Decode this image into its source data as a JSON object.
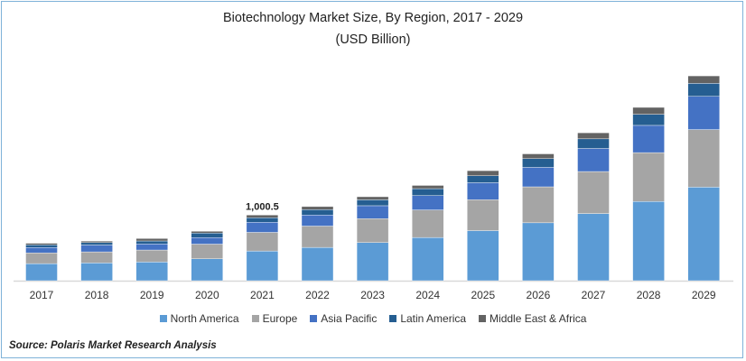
{
  "chart_data": {
    "type": "bar",
    "stacked": true,
    "title": "Biotechnology Market Size, By Region, 2017 - 2029",
    "subtitle": "(USD Billion)",
    "xlabel": "",
    "ylabel": "",
    "ylim": [
      0,
      3300
    ],
    "grid": false,
    "legend_position": "bottom",
    "categories": [
      "2017",
      "2018",
      "2019",
      "2020",
      "2021",
      "2022",
      "2023",
      "2024",
      "2025",
      "2026",
      "2027",
      "2028",
      "2029"
    ],
    "series": [
      {
        "name": "North America",
        "color": "#5b9bd5",
        "values": [
          260,
          270,
          284,
          333,
          452,
          507,
          581,
          658,
          763,
          882,
          1023,
          1206,
          1425
        ]
      },
      {
        "name": "Europe",
        "color": "#a5a5a5",
        "values": [
          164,
          169,
          183,
          224,
          284,
          325,
          364,
          420,
          470,
          548,
          640,
          745,
          877
        ]
      },
      {
        "name": "Asia Pacific",
        "color": "#4472c4",
        "values": [
          82,
          105,
          92,
          100,
          155,
          169,
          197,
          219,
          260,
          296,
          351,
          415,
          507
        ]
      },
      {
        "name": "Latin America",
        "color": "#255e91",
        "values": [
          41,
          36,
          46,
          68,
          68,
          82,
          90,
          105,
          105,
          133,
          147,
          169,
          197
        ]
      },
      {
        "name": "Middle East & Africa",
        "color": "#636363",
        "values": [
          23,
          23,
          37,
          27,
          41,
          46,
          47,
          49,
          78,
          73,
          92,
          105,
          114
        ]
      }
    ],
    "annotations": [
      {
        "category": "2021",
        "label": "1,000.5"
      }
    ]
  },
  "source": "Source: Polaris Market Research Analysis"
}
